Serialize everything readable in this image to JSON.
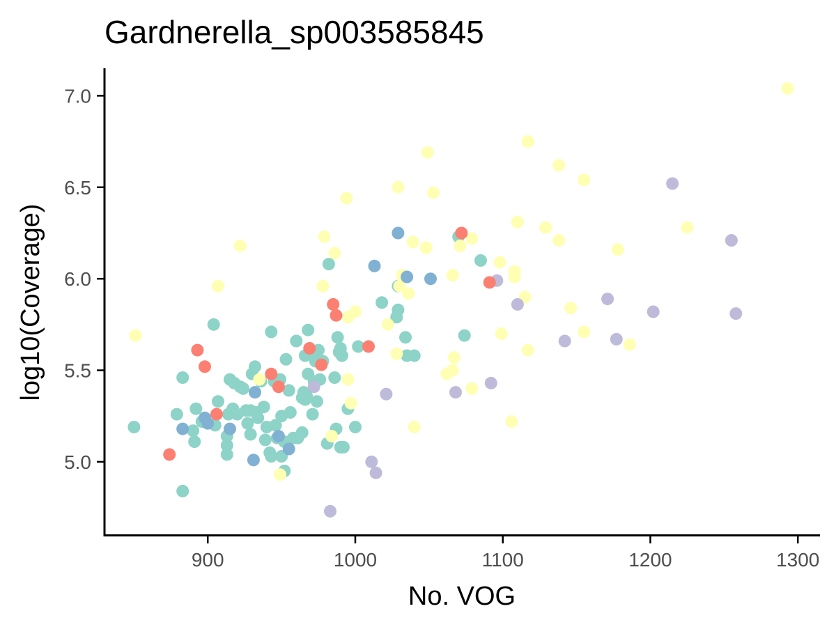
{
  "chart_data": {
    "type": "scatter",
    "title": "Gardnerella_sp003585845",
    "xlabel": "No. VOG",
    "ylabel": "log10(Coverage)",
    "xlim": [
      830,
      1315
    ],
    "ylim": [
      4.6,
      7.15
    ],
    "xticks": [
      900,
      1000,
      1100,
      1200,
      1300
    ],
    "yticks": [
      5.0,
      5.5,
      6.0,
      6.5,
      7.0
    ],
    "xtick_labels": [
      "900",
      "1000",
      "1100",
      "1200",
      "1300"
    ],
    "ytick_labels": [
      "5.0",
      "5.5",
      "6.0",
      "6.5",
      "7.0"
    ],
    "grid": false,
    "legend": "none",
    "series": [
      {
        "color": "#8DD3C7",
        "points": [
          [
            850,
            5.19
          ],
          [
            879,
            5.26
          ],
          [
            883,
            5.46
          ],
          [
            883,
            4.84
          ],
          [
            890,
            5.17
          ],
          [
            891,
            5.11
          ],
          [
            892,
            5.29
          ],
          [
            896,
            5.22
          ],
          [
            904,
            5.75
          ],
          [
            905,
            5.2
          ],
          [
            907,
            5.33
          ],
          [
            913,
            5.04
          ],
          [
            913,
            5.09
          ],
          [
            913,
            5.14
          ],
          [
            914,
            5.26
          ],
          [
            915,
            5.45
          ],
          [
            917,
            5.29
          ],
          [
            918,
            5.43
          ],
          [
            920,
            5.26
          ],
          [
            922,
            5.41
          ],
          [
            924,
            5.4
          ],
          [
            926,
            5.28
          ],
          [
            927,
            5.21
          ],
          [
            929,
            5.15
          ],
          [
            929,
            5.28
          ],
          [
            930,
            5.48
          ],
          [
            932,
            5.52
          ],
          [
            933,
            5.27
          ],
          [
            934,
            5.24
          ],
          [
            936,
            5.44
          ],
          [
            938,
            5.3
          ],
          [
            939,
            5.12
          ],
          [
            940,
            5.19
          ],
          [
            942,
            5.05
          ],
          [
            943,
            5.71
          ],
          [
            943,
            5.03
          ],
          [
            945,
            5.44
          ],
          [
            946,
            5.2
          ],
          [
            947,
            5.13
          ],
          [
            949,
            5.45
          ],
          [
            950,
            5.25
          ],
          [
            950,
            5.03
          ],
          [
            952,
            5.11
          ],
          [
            952,
            4.95
          ],
          [
            953,
            5.56
          ],
          [
            955,
            5.39
          ],
          [
            956,
            5.27
          ],
          [
            958,
            5.13
          ],
          [
            960,
            5.66
          ],
          [
            961,
            5.13
          ],
          [
            964,
            5.16
          ],
          [
            964,
            5.35
          ],
          [
            965,
            5.38
          ],
          [
            966,
            5.34
          ],
          [
            966,
            5.58
          ],
          [
            967,
            5.36
          ],
          [
            968,
            5.72
          ],
          [
            968,
            5.48
          ],
          [
            970,
            5.61
          ],
          [
            971,
            5.26
          ],
          [
            972,
            5.44
          ],
          [
            973,
            5.55
          ],
          [
            974,
            5.33
          ],
          [
            975,
            5.61
          ],
          [
            976,
            5.45
          ],
          [
            978,
            5.55
          ],
          [
            981,
            5.1
          ],
          [
            982,
            6.08
          ],
          [
            986,
            5.46
          ],
          [
            987,
            5.18
          ],
          [
            988,
            5.68
          ],
          [
            989,
            5.6
          ],
          [
            990,
            5.62
          ],
          [
            990,
            5.08
          ],
          [
            991,
            5.58
          ],
          [
            992,
            5.08
          ],
          [
            995,
            5.29
          ],
          [
            1000,
            5.19
          ],
          [
            1002,
            5.63
          ],
          [
            1018,
            5.87
          ],
          [
            1028,
            5.79
          ],
          [
            1029,
            5.83
          ],
          [
            1029,
            5.96
          ],
          [
            1034,
            5.68
          ],
          [
            1035,
            5.58
          ],
          [
            1040,
            5.58
          ],
          [
            1070,
            6.23
          ],
          [
            1074,
            5.69
          ],
          [
            1085,
            6.1
          ]
        ]
      },
      {
        "color": "#FFFFB3",
        "points": [
          [
            851,
            5.69
          ],
          [
            907,
            5.96
          ],
          [
            922,
            6.18
          ],
          [
            935,
            5.45
          ],
          [
            949,
            4.93
          ],
          [
            978,
            5.96
          ],
          [
            979,
            6.23
          ],
          [
            984,
            5.14
          ],
          [
            986,
            6.14
          ],
          [
            994,
            6.44
          ],
          [
            995,
            5.79
          ],
          [
            995,
            5.45
          ],
          [
            997,
            5.32
          ],
          [
            1000,
            5.82
          ],
          [
            1022,
            5.75
          ],
          [
            1028,
            5.59
          ],
          [
            1029,
            6.5
          ],
          [
            1030,
            5.96
          ],
          [
            1032,
            6.02
          ],
          [
            1036,
            5.92
          ],
          [
            1039,
            6.2
          ],
          [
            1040,
            5.19
          ],
          [
            1048,
            6.17
          ],
          [
            1049,
            6.69
          ],
          [
            1053,
            6.47
          ],
          [
            1062,
            5.48
          ],
          [
            1066,
            5.5
          ],
          [
            1066,
            6.02
          ],
          [
            1067,
            5.57
          ],
          [
            1071,
            6.18
          ],
          [
            1079,
            5.4
          ],
          [
            1079,
            6.22
          ],
          [
            1098,
            6.09
          ],
          [
            1099,
            5.7
          ],
          [
            1106,
            5.22
          ],
          [
            1108,
            6.04
          ],
          [
            1108,
            6.01
          ],
          [
            1110,
            6.31
          ],
          [
            1115,
            5.9
          ],
          [
            1117,
            6.75
          ],
          [
            1117,
            5.61
          ],
          [
            1129,
            6.28
          ],
          [
            1138,
            6.62
          ],
          [
            1138,
            6.21
          ],
          [
            1146,
            5.84
          ],
          [
            1155,
            6.54
          ],
          [
            1155,
            5.71
          ],
          [
            1178,
            6.16
          ],
          [
            1186,
            5.64
          ],
          [
            1225,
            6.28
          ],
          [
            1293,
            7.04
          ]
        ]
      },
      {
        "color": "#BEBADA",
        "points": [
          [
            972,
            5.41
          ],
          [
            983,
            4.73
          ],
          [
            1011,
            5.0
          ],
          [
            1014,
            4.94
          ],
          [
            1021,
            5.37
          ],
          [
            1068,
            5.38
          ],
          [
            1092,
            5.43
          ],
          [
            1096,
            5.99
          ],
          [
            1110,
            5.86
          ],
          [
            1142,
            5.66
          ],
          [
            1171,
            5.89
          ],
          [
            1177,
            5.67
          ],
          [
            1202,
            5.82
          ],
          [
            1215,
            6.52
          ],
          [
            1255,
            6.21
          ],
          [
            1258,
            5.81
          ]
        ]
      },
      {
        "color": "#FB8072",
        "points": [
          [
            874,
            5.04
          ],
          [
            893,
            5.61
          ],
          [
            898,
            5.52
          ],
          [
            906,
            5.26
          ],
          [
            943,
            5.48
          ],
          [
            948,
            5.41
          ],
          [
            969,
            5.62
          ],
          [
            977,
            5.53
          ],
          [
            985,
            5.86
          ],
          [
            987,
            5.8
          ],
          [
            1009,
            5.63
          ],
          [
            1072,
            6.25
          ],
          [
            1091,
            5.98
          ]
        ]
      },
      {
        "color": "#80B1D3",
        "points": [
          [
            883,
            5.18
          ],
          [
            898,
            5.24
          ],
          [
            900,
            5.21
          ],
          [
            915,
            5.18
          ],
          [
            931,
            5.01
          ],
          [
            932,
            5.38
          ],
          [
            948,
            5.14
          ],
          [
            955,
            5.07
          ],
          [
            1013,
            6.07
          ],
          [
            1029,
            6.25
          ],
          [
            1035,
            6.01
          ],
          [
            1051,
            6.0
          ]
        ]
      }
    ]
  }
}
